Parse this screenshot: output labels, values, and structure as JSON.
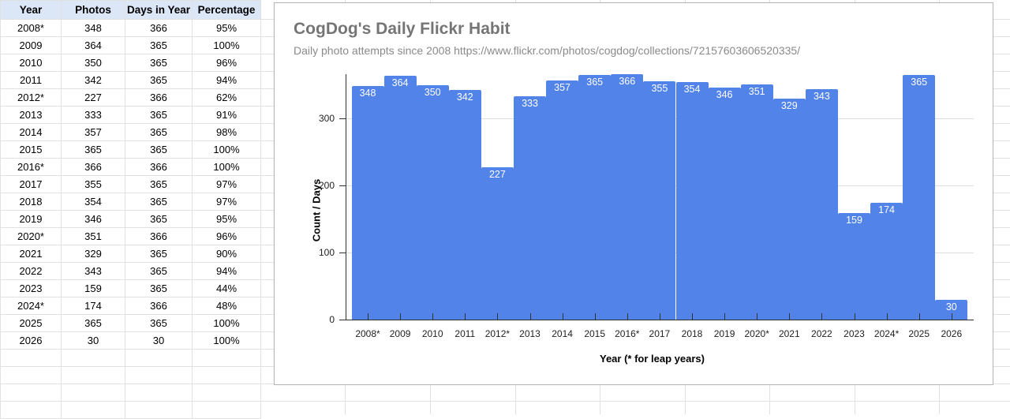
{
  "sheet": {
    "headers": [
      "Year",
      "Photos",
      "Days in Year",
      "Percentage"
    ],
    "rows": [
      [
        "2008*",
        "348",
        "366",
        "95%"
      ],
      [
        "2009",
        "364",
        "365",
        "100%"
      ],
      [
        "2010",
        "350",
        "365",
        "96%"
      ],
      [
        "2011",
        "342",
        "365",
        "94%"
      ],
      [
        "2012*",
        "227",
        "366",
        "62%"
      ],
      [
        "2013",
        "333",
        "365",
        "91%"
      ],
      [
        "2014",
        "357",
        "365",
        "98%"
      ],
      [
        "2015",
        "365",
        "365",
        "100%"
      ],
      [
        "2016*",
        "366",
        "366",
        "100%"
      ],
      [
        "2017",
        "355",
        "365",
        "97%"
      ],
      [
        "2018",
        "354",
        "365",
        "97%"
      ],
      [
        "2019",
        "346",
        "365",
        "95%"
      ],
      [
        "2020*",
        "351",
        "366",
        "96%"
      ],
      [
        "2021",
        "329",
        "365",
        "90%"
      ],
      [
        "2022",
        "343",
        "365",
        "94%"
      ],
      [
        "2023",
        "159",
        "365",
        "44%"
      ],
      [
        "2024*",
        "174",
        "366",
        "48%"
      ],
      [
        "2025",
        "365",
        "365",
        "100%"
      ],
      [
        "2026",
        "30",
        "30",
        "100%"
      ]
    ]
  },
  "chart": {
    "title": "CogDog's Daily Flickr Habit",
    "subtitle": "Daily photo attempts since 2008 https://www.flickr.com/photos/cogdog/collections/72157603606520335/",
    "xlabel": "Year (* for leap years)",
    "ylabel": "Count / Days",
    "bar_color": "#5183e8",
    "yticks": [
      "0",
      "100",
      "200",
      "300"
    ]
  },
  "chart_data": {
    "type": "bar",
    "title": "CogDog's Daily Flickr Habit",
    "subtitle": "Daily photo attempts since 2008 https://www.flickr.com/photos/cogdog/collections/72157603606520335/",
    "xlabel": "Year (* for leap years)",
    "ylabel": "Count / Days",
    "categories": [
      "2008*",
      "2009",
      "2010",
      "2011",
      "2012*",
      "2013",
      "2014",
      "2015",
      "2016*",
      "2017",
      "2018",
      "2019",
      "2020*",
      "2021",
      "2022",
      "2023",
      "2024*",
      "2025",
      "2026"
    ],
    "values": [
      348,
      364,
      350,
      342,
      227,
      333,
      357,
      365,
      366,
      355,
      354,
      346,
      351,
      329,
      343,
      159,
      174,
      365,
      30
    ],
    "ylim": [
      0,
      366
    ],
    "yticks": [
      0,
      100,
      200,
      300
    ],
    "grid": true,
    "legend": "none",
    "data_labels": true
  }
}
